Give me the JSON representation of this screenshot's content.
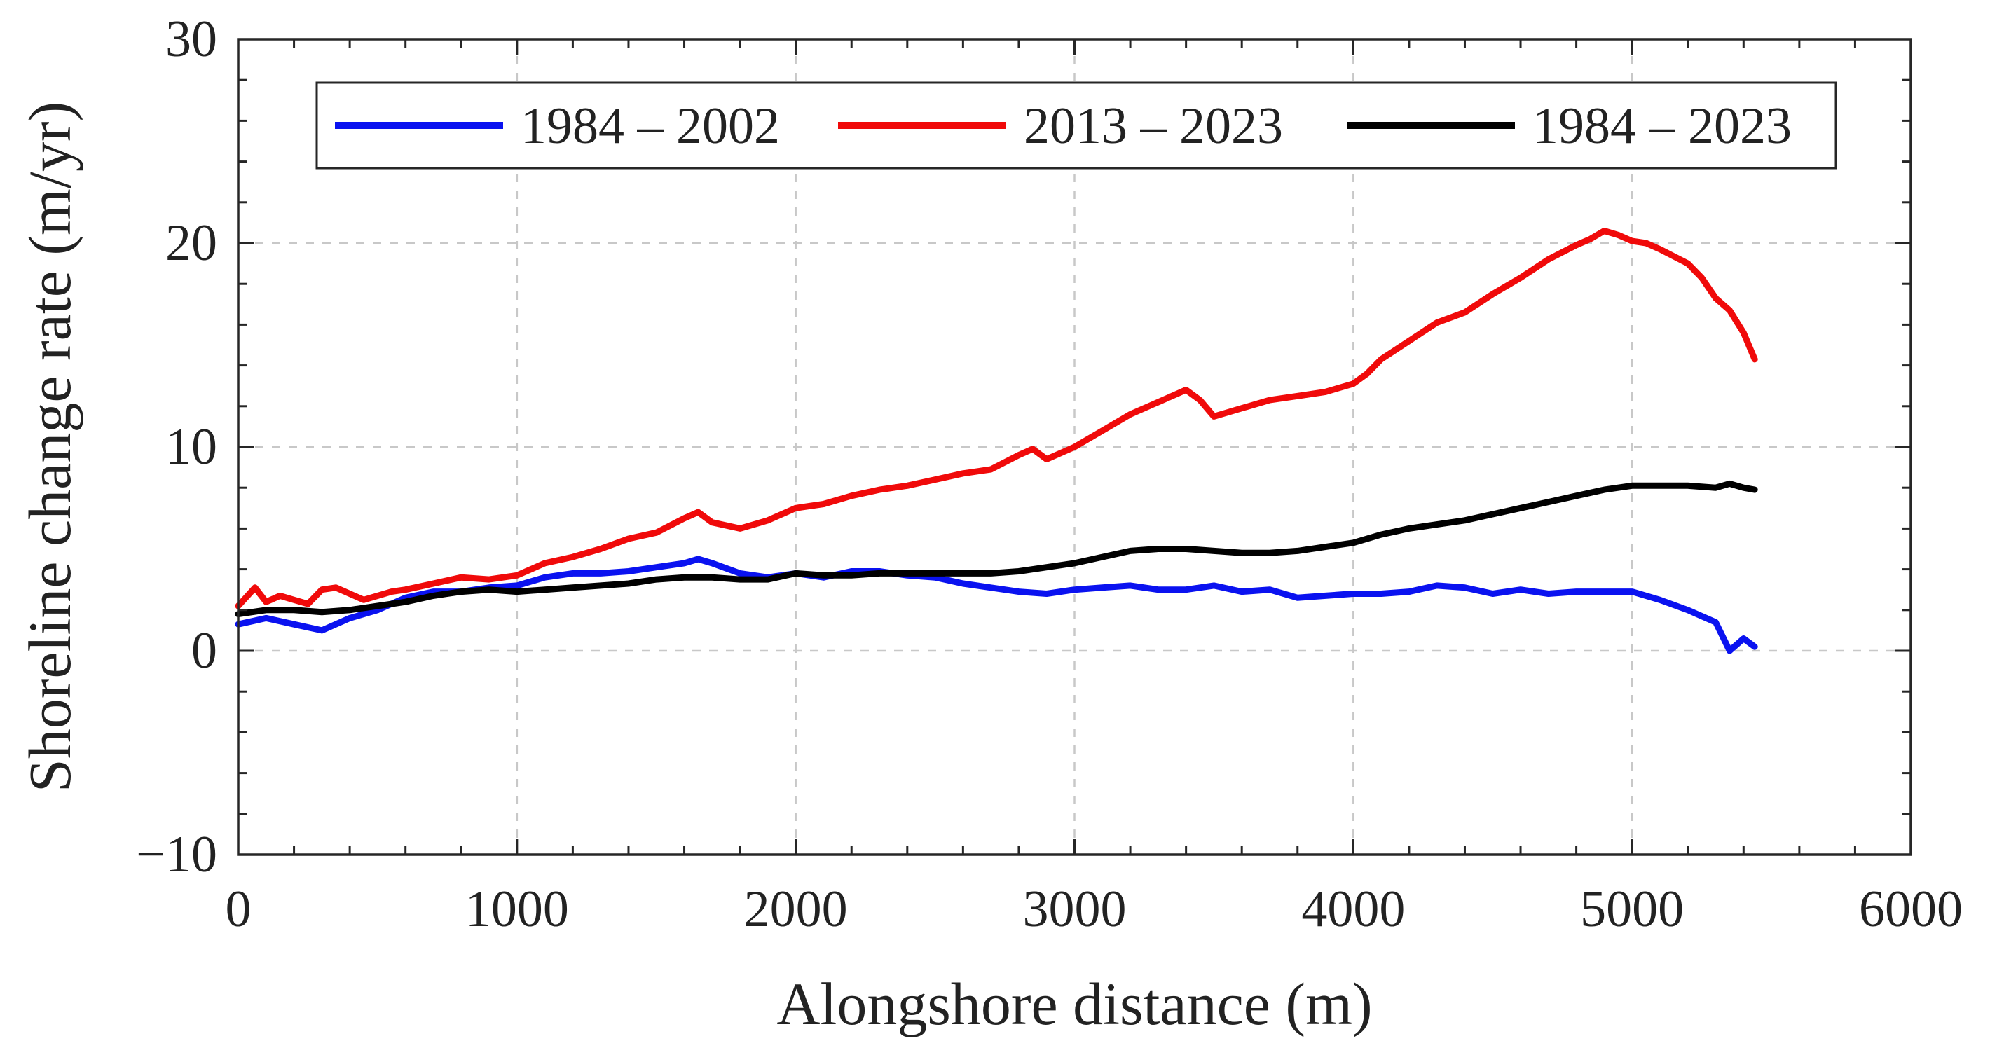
{
  "chart_data": {
    "type": "line",
    "title": "",
    "xlabel": "Alongshore distance (m)",
    "ylabel": "Shoreline change rate (m/yr)",
    "xlim": [
      0,
      6000
    ],
    "ylim": [
      -10,
      30
    ],
    "x_ticks": [
      0,
      1000,
      2000,
      3000,
      4000,
      5000,
      6000
    ],
    "x_tick_labels": [
      "0",
      "1000",
      "2000",
      "3000",
      "4000",
      "5000",
      "6000"
    ],
    "y_ticks": [
      -10,
      0,
      10,
      20,
      30
    ],
    "y_tick_labels": [
      "−10",
      "0",
      "10",
      "20",
      "30"
    ],
    "grid": true,
    "legend_position": "top",
    "series": [
      {
        "name": "1984 – 2002",
        "color": "#0a12f0",
        "x": [
          0,
          100,
          200,
          300,
          400,
          500,
          600,
          700,
          800,
          900,
          1000,
          1100,
          1200,
          1300,
          1400,
          1500,
          1600,
          1650,
          1700,
          1800,
          1900,
          2000,
          2100,
          2200,
          2300,
          2400,
          2500,
          2600,
          2700,
          2800,
          2900,
          3000,
          3100,
          3200,
          3300,
          3400,
          3500,
          3600,
          3700,
          3800,
          3900,
          4000,
          4100,
          4200,
          4300,
          4400,
          4500,
          4600,
          4700,
          4800,
          4900,
          5000,
          5100,
          5200,
          5300,
          5350,
          5400,
          5440
        ],
        "y": [
          1.3,
          1.6,
          1.3,
          1.0,
          1.6,
          2.0,
          2.6,
          2.9,
          2.9,
          3.1,
          3.2,
          3.6,
          3.8,
          3.8,
          3.9,
          4.1,
          4.3,
          4.5,
          4.3,
          3.8,
          3.6,
          3.8,
          3.6,
          3.9,
          3.9,
          3.7,
          3.6,
          3.3,
          3.1,
          2.9,
          2.8,
          3.0,
          3.1,
          3.2,
          3.0,
          3.0,
          3.2,
          2.9,
          3.0,
          2.6,
          2.7,
          2.8,
          2.8,
          2.9,
          3.2,
          3.1,
          2.8,
          3.0,
          2.8,
          2.9,
          2.9,
          2.9,
          2.5,
          2.0,
          1.4,
          0.0,
          0.6,
          0.2
        ]
      },
      {
        "name": "2013 – 2023",
        "color": "#f00a0a",
        "x": [
          0,
          60,
          100,
          150,
          200,
          250,
          300,
          350,
          400,
          450,
          500,
          550,
          600,
          700,
          800,
          900,
          1000,
          1100,
          1200,
          1300,
          1400,
          1500,
          1600,
          1650,
          1700,
          1800,
          1900,
          2000,
          2100,
          2200,
          2300,
          2400,
          2500,
          2600,
          2700,
          2800,
          2850,
          2900,
          3000,
          3100,
          3200,
          3300,
          3400,
          3450,
          3500,
          3600,
          3700,
          3800,
          3900,
          4000,
          4050,
          4100,
          4200,
          4300,
          4400,
          4500,
          4600,
          4700,
          4800,
          4850,
          4900,
          4950,
          5000,
          5050,
          5100,
          5200,
          5250,
          5300,
          5350,
          5400,
          5440
        ],
        "y": [
          2.2,
          3.1,
          2.4,
          2.7,
          2.5,
          2.3,
          3.0,
          3.1,
          2.8,
          2.5,
          2.7,
          2.9,
          3.0,
          3.3,
          3.6,
          3.5,
          3.7,
          4.3,
          4.6,
          5.0,
          5.5,
          5.8,
          6.5,
          6.8,
          6.3,
          6.0,
          6.4,
          7.0,
          7.2,
          7.6,
          7.9,
          8.1,
          8.4,
          8.7,
          8.9,
          9.6,
          9.9,
          9.4,
          10.0,
          10.8,
          11.6,
          12.2,
          12.8,
          12.3,
          11.5,
          11.9,
          12.3,
          12.5,
          12.7,
          13.1,
          13.6,
          14.3,
          15.2,
          16.1,
          16.6,
          17.5,
          18.3,
          19.2,
          19.9,
          20.2,
          20.6,
          20.4,
          20.1,
          20.0,
          19.7,
          19.0,
          18.3,
          17.3,
          16.7,
          15.6,
          14.3
        ]
      },
      {
        "name": "1984 – 2023",
        "color": "#000000",
        "x": [
          0,
          100,
          200,
          300,
          400,
          500,
          600,
          700,
          800,
          900,
          1000,
          1100,
          1200,
          1300,
          1400,
          1500,
          1600,
          1700,
          1800,
          1900,
          2000,
          2100,
          2200,
          2300,
          2400,
          2500,
          2600,
          2700,
          2800,
          2900,
          3000,
          3100,
          3200,
          3300,
          3400,
          3500,
          3600,
          3700,
          3800,
          3900,
          4000,
          4100,
          4200,
          4300,
          4400,
          4500,
          4600,
          4700,
          4800,
          4900,
          5000,
          5100,
          5200,
          5300,
          5350,
          5400,
          5440
        ],
        "y": [
          1.8,
          2.0,
          2.0,
          1.9,
          2.0,
          2.2,
          2.4,
          2.7,
          2.9,
          3.0,
          2.9,
          3.0,
          3.1,
          3.2,
          3.3,
          3.5,
          3.6,
          3.6,
          3.5,
          3.5,
          3.8,
          3.7,
          3.7,
          3.8,
          3.8,
          3.8,
          3.8,
          3.8,
          3.9,
          4.1,
          4.3,
          4.6,
          4.9,
          5.0,
          5.0,
          4.9,
          4.8,
          4.8,
          4.9,
          5.1,
          5.3,
          5.7,
          6.0,
          6.2,
          6.4,
          6.7,
          7.0,
          7.3,
          7.6,
          7.9,
          8.1,
          8.1,
          8.1,
          8.0,
          8.2,
          8.0,
          7.9
        ]
      }
    ]
  }
}
